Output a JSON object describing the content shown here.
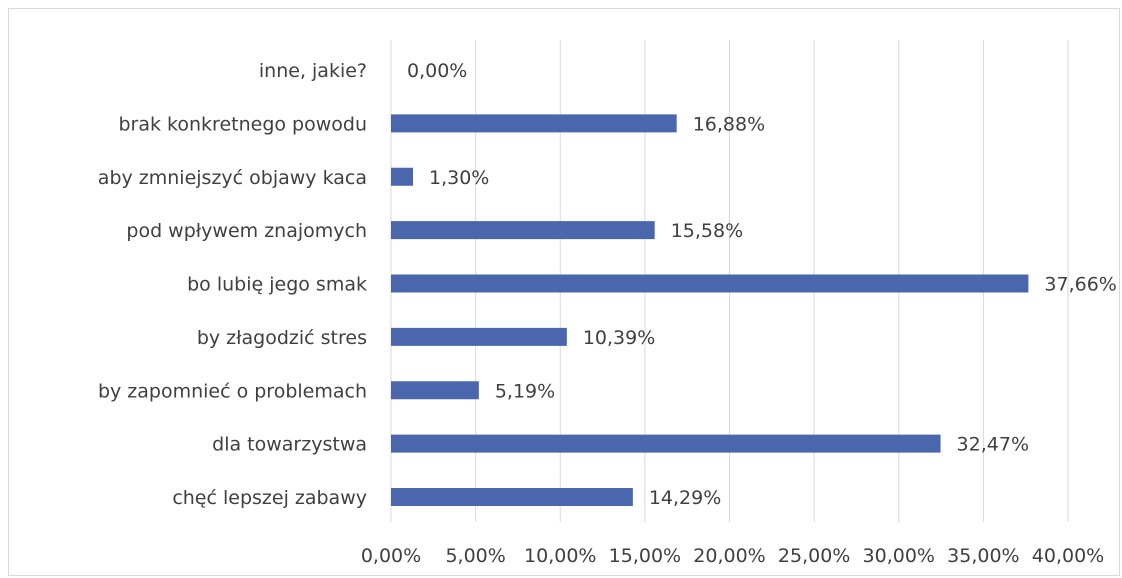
{
  "chart_data": {
    "type": "bar",
    "orientation": "horizontal",
    "categories": [
      "chęć lepszej zabawy",
      "dla towarzystwa",
      "by zapomnieć o problemach",
      "by złagodzić stres",
      "bo lubię jego smak",
      "pod wpływem znajomych",
      "aby zmniejszyć objawy kaca",
      "brak konkretnego powodu",
      "inne, jakie?"
    ],
    "category_labels": [
      "chęć lepszej zabawy",
      "dla towarzystwa",
      "by zapomnieć o problemach",
      "by złagodzić stres",
      "bo lubię jego smak",
      "pod wpływem znajomych",
      "aby zmniejszyć objawy kaca",
      "brak konkretnego powodu",
      "inne, jakie?"
    ],
    "values": [
      14.29,
      32.47,
      5.19,
      10.39,
      37.66,
      15.58,
      1.3,
      16.88,
      0.0
    ],
    "data_labels": [
      "14,29%",
      "32,47%",
      "5,19%",
      "10,39%",
      "37,66%",
      "15,58%",
      "1,30%",
      "16,88%",
      "0,00%"
    ],
    "xlim": [
      0,
      40
    ],
    "x_ticks": [
      0,
      5,
      10,
      15,
      20,
      25,
      30,
      35,
      40
    ],
    "x_tick_labels": [
      "0,00%",
      "5,00%",
      "10,00%",
      "15,00%",
      "20,00%",
      "25,00%",
      "30,00%",
      "35,00%",
      "40,00%"
    ],
    "title": "",
    "xlabel": "",
    "ylabel": "",
    "grid": "vertical",
    "legend": "none",
    "bar_color": "#4a67ad",
    "grid_color": "#d9d9d9"
  }
}
